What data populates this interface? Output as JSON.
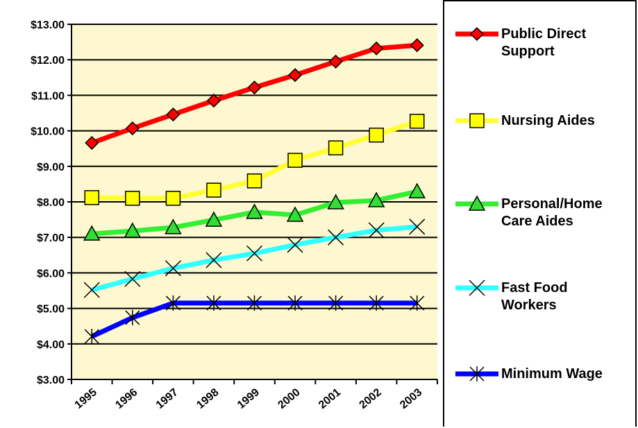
{
  "chart_data": {
    "type": "line",
    "categories": [
      "1995",
      "1996",
      "1997",
      "1998",
      "1999",
      "2000",
      "2001",
      "2002",
      "2003"
    ],
    "series": [
      {
        "name": "Public Direct Support",
        "color": "#ff0000",
        "marker": "diamond",
        "marker_color": "#ff0000",
        "values": [
          9.66,
          10.07,
          10.46,
          10.85,
          11.22,
          11.57,
          11.95,
          12.32,
          12.41
        ]
      },
      {
        "name": "Nursing Aides",
        "color": "#ffff33",
        "marker": "square",
        "marker_color": "#ffff00",
        "values": [
          8.12,
          8.1,
          8.1,
          8.33,
          8.59,
          9.17,
          9.52,
          9.88,
          10.27
        ]
      },
      {
        "name": "Personal/Home Care Aides",
        "color": "#33ee33",
        "marker": "triangle",
        "marker_color": "#33dd33",
        "values": [
          7.1,
          7.18,
          7.28,
          7.49,
          7.71,
          7.63,
          7.98,
          8.04,
          8.29
        ]
      },
      {
        "name": "Fast Food Workers",
        "color": "#33ffff",
        "marker": "x",
        "marker_color": "#000000",
        "values": [
          5.52,
          5.83,
          6.13,
          6.36,
          6.55,
          6.79,
          7.0,
          7.2,
          7.3
        ]
      },
      {
        "name": "Minimum Wage",
        "color": "#0000ff",
        "marker": "star",
        "marker_color": "#000000",
        "values": [
          4.21,
          4.74,
          5.15,
          5.15,
          5.15,
          5.15,
          5.15,
          5.15,
          5.15
        ]
      }
    ],
    "ylim": [
      3,
      13
    ],
    "yticks": [
      {
        "value": 3,
        "label": "$3.00"
      },
      {
        "value": 4,
        "label": "$4.00"
      },
      {
        "value": 5,
        "label": "$5.00"
      },
      {
        "value": 6,
        "label": "$6.00"
      },
      {
        "value": 7,
        "label": "$7.00"
      },
      {
        "value": 8,
        "label": "$8.00"
      },
      {
        "value": 9,
        "label": "$9.00"
      },
      {
        "value": 10,
        "label": "$10.00"
      },
      {
        "value": 11,
        "label": "$11.00"
      },
      {
        "value": 12,
        "label": "$12.00"
      },
      {
        "value": 13,
        "label": "$13.00"
      }
    ],
    "grid": true,
    "plot_background": "#fdf8cf",
    "legend": "right"
  }
}
